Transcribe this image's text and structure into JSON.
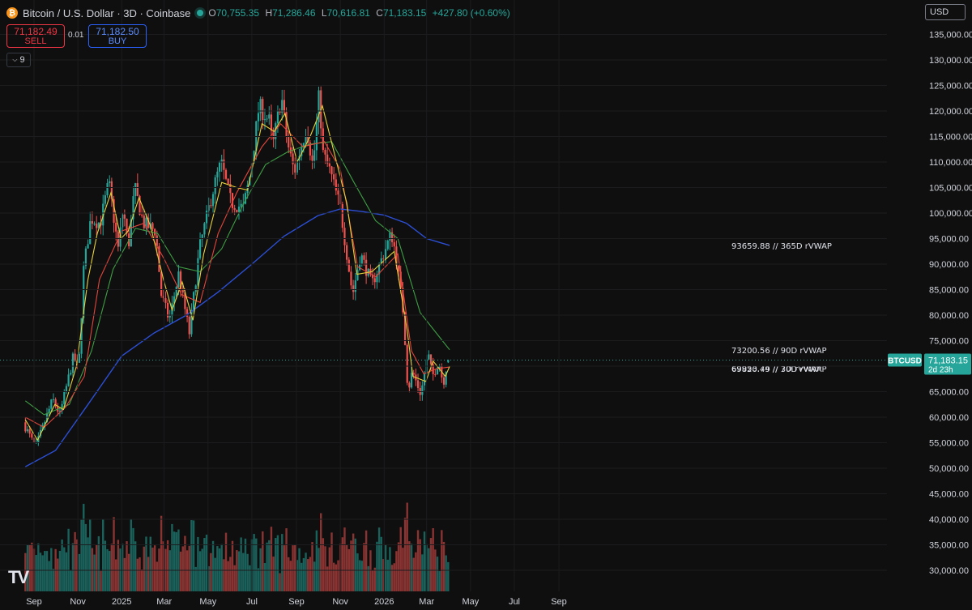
{
  "header": {
    "title": "Bitcoin / U.S. Dollar · 3D · Coinbase",
    "coin_glyph": "₿",
    "open_label": "O",
    "open": "70,755.35",
    "high_label": "H",
    "high": "71,286.46",
    "low_label": "L",
    "low": "70,616.81",
    "close_label": "C",
    "close": "71,183.15",
    "change": "+427.80 (+0.60%)"
  },
  "trade": {
    "sell_price": "71,182.49",
    "sell_label": "SELL",
    "spread": "0.01",
    "buy_price": "71,182.50",
    "buy_label": "BUY"
  },
  "indicator_count": "9",
  "currency": "USD",
  "logo": "TV",
  "colors": {
    "up": "#26a69a",
    "down": "#ef5350",
    "vwap365": "#2c4fd6",
    "vwap90": "#3f9e45",
    "vwap30": "#e3463c",
    "vwap7": "#e6d23a",
    "background": "#0f0f0f"
  },
  "chart_data": {
    "type": "candlestick",
    "title": "Bitcoin / U.S. Dollar · 3D · Coinbase",
    "y_axis": {
      "ticks": [
        "30,000.00",
        "35,000.00",
        "40,000.00",
        "45,000.00",
        "50,000.00",
        "55,000.00",
        "60,000.00",
        "65,000.00",
        "70,000.00",
        "75,000.00",
        "80,000.00",
        "85,000.00",
        "90,000.00",
        "95,000.00",
        "100,000.00",
        "105,000.00",
        "110,000.00",
        "115,000.00",
        "120,000.00",
        "125,000.00",
        "130,000.00",
        "135,000.00"
      ],
      "range": [
        27000,
        137000
      ]
    },
    "x_axis": {
      "ticks": [
        "Sep",
        "Nov",
        "2025",
        "Mar",
        "May",
        "Jul",
        "Sep",
        "Nov",
        "2026",
        "Mar",
        "May",
        "Jul",
        "Sep"
      ],
      "start": "2024-08-20"
    },
    "price_path": [
      [
        "2024-08-20",
        59000
      ],
      [
        "2024-09-06",
        54000
      ],
      [
        "2024-09-30",
        63500
      ],
      [
        "2024-10-10",
        60500
      ],
      [
        "2024-10-29",
        72000
      ],
      [
        "2024-11-05",
        69000
      ],
      [
        "2024-11-12",
        89000
      ],
      [
        "2024-11-22",
        99000
      ],
      [
        "2024-12-05",
        98000
      ],
      [
        "2024-12-17",
        106000
      ],
      [
        "2024-12-30",
        93000
      ],
      [
        "2025-01-06",
        101000
      ],
      [
        "2025-01-13",
        93000
      ],
      [
        "2025-01-22",
        105000
      ],
      [
        "2025-02-03",
        98000
      ],
      [
        "2025-02-20",
        96500
      ],
      [
        "2025-02-28",
        84000
      ],
      [
        "2025-03-11",
        79000
      ],
      [
        "2025-03-24",
        88000
      ],
      [
        "2025-04-08",
        76500
      ],
      [
        "2025-04-22",
        93000
      ],
      [
        "2025-05-10",
        104000
      ],
      [
        "2025-05-22",
        110000
      ],
      [
        "2025-06-05",
        102000
      ],
      [
        "2025-06-22",
        101000
      ],
      [
        "2025-07-01",
        107000
      ],
      [
        "2025-07-14",
        121000
      ],
      [
        "2025-07-28",
        118000
      ],
      [
        "2025-08-02",
        113000
      ],
      [
        "2025-08-14",
        123000
      ],
      [
        "2025-08-22",
        114000
      ],
      [
        "2025-09-01",
        108000
      ],
      [
        "2025-09-18",
        117000
      ],
      [
        "2025-09-27",
        109000
      ],
      [
        "2025-10-06",
        124000
      ],
      [
        "2025-10-10",
        112000
      ],
      [
        "2025-10-21",
        108000
      ],
      [
        "2025-11-04",
        101000
      ],
      [
        "2025-11-21",
        84000
      ],
      [
        "2025-12-02",
        92000
      ],
      [
        "2025-12-18",
        86000
      ],
      [
        "2026-01-14",
        96000
      ],
      [
        "2026-01-20",
        92000
      ],
      [
        "2026-01-31",
        80000
      ],
      [
        "2026-02-06",
        65000
      ],
      [
        "2026-02-12",
        69000
      ],
      [
        "2026-02-24",
        64500
      ],
      [
        "2026-03-06",
        72500
      ],
      [
        "2026-03-12",
        68000
      ],
      [
        "2026-03-21",
        71000
      ],
      [
        "2026-03-27",
        66500
      ],
      [
        "2026-04-02",
        71183
      ]
    ],
    "last_candle": {
      "open": 70755.35,
      "high": 71286.46,
      "low": 70616.81,
      "close": 71183.15
    },
    "current_price": {
      "symbol": "BTCUSD",
      "value": "71,183.15",
      "countdown": "2d 23h",
      "y": 71183.15
    },
    "series": [
      {
        "name": "365D rVWAP",
        "end_label": "93659.88 // 365D rVWAP",
        "end_value": 93659.88,
        "color": "#2c4fd6",
        "points": [
          [
            "2024-08-20",
            50300
          ],
          [
            "2024-10-01",
            53500
          ],
          [
            "2024-11-15",
            62500
          ],
          [
            "2025-01-01",
            72000
          ],
          [
            "2025-02-15",
            76500
          ],
          [
            "2025-04-01",
            80000
          ],
          [
            "2025-05-15",
            84500
          ],
          [
            "2025-07-01",
            90000
          ],
          [
            "2025-08-15",
            95500
          ],
          [
            "2025-10-01",
            99500
          ],
          [
            "2025-11-01",
            100800
          ],
          [
            "2025-12-01",
            100300
          ],
          [
            "2026-01-01",
            99600
          ],
          [
            "2026-02-01",
            98000
          ],
          [
            "2026-03-01",
            95000
          ],
          [
            "2026-04-02",
            93660
          ]
        ]
      },
      {
        "name": "90D rVWAP",
        "end_label": "73200.56 // 90D rVWAP",
        "end_value": 73200.56,
        "color": "#3f9e45",
        "points": [
          [
            "2024-08-20",
            63200
          ],
          [
            "2024-09-15",
            60500
          ],
          [
            "2024-10-20",
            62500
          ],
          [
            "2024-11-20",
            73000
          ],
          [
            "2024-12-20",
            89000
          ],
          [
            "2025-01-20",
            97000
          ],
          [
            "2025-02-20",
            96000
          ],
          [
            "2025-03-20",
            89500
          ],
          [
            "2025-04-20",
            88500
          ],
          [
            "2025-05-20",
            93000
          ],
          [
            "2025-06-20",
            102000
          ],
          [
            "2025-07-20",
            109500
          ],
          [
            "2025-08-20",
            112000
          ],
          [
            "2025-09-20",
            113500
          ],
          [
            "2025-10-20",
            114000
          ],
          [
            "2025-11-20",
            106000
          ],
          [
            "2025-12-20",
            98500
          ],
          [
            "2026-01-20",
            95000
          ],
          [
            "2026-02-20",
            80500
          ],
          [
            "2026-03-20",
            75500
          ],
          [
            "2026-04-02",
            73200
          ]
        ]
      },
      {
        "name": "30D rVWAP",
        "end_label": "69820.49 // 30D rVWAP",
        "end_value": 69820.49,
        "color": "#e3463c",
        "points": [
          [
            "2024-08-20",
            60000
          ],
          [
            "2024-09-15",
            58000
          ],
          [
            "2024-10-15",
            62000
          ],
          [
            "2024-11-10",
            68000
          ],
          [
            "2024-12-01",
            87000
          ],
          [
            "2025-01-01",
            96500
          ],
          [
            "2025-02-01",
            98000
          ],
          [
            "2025-03-01",
            91000
          ],
          [
            "2025-03-25",
            84000
          ],
          [
            "2025-04-20",
            82500
          ],
          [
            "2025-05-15",
            96000
          ],
          [
            "2025-06-10",
            104000
          ],
          [
            "2025-07-15",
            113000
          ],
          [
            "2025-08-10",
            117500
          ],
          [
            "2025-09-10",
            113000
          ],
          [
            "2025-10-10",
            114000
          ],
          [
            "2025-11-01",
            108500
          ],
          [
            "2025-11-25",
            89500
          ],
          [
            "2025-12-20",
            87500
          ],
          [
            "2026-01-20",
            92000
          ],
          [
            "2026-02-08",
            73000
          ],
          [
            "2026-02-25",
            68500
          ],
          [
            "2026-03-15",
            69500
          ],
          [
            "2026-04-02",
            69820
          ]
        ]
      },
      {
        "name": "7D rVWAP",
        "end_label": "69953.74 // 7D rVWAP",
        "end_value": 69953.74,
        "color": "#e6d23a",
        "points": [
          [
            "2024-08-20",
            59500
          ],
          [
            "2024-09-06",
            55500
          ],
          [
            "2024-09-30",
            62500
          ],
          [
            "2024-10-12",
            61500
          ],
          [
            "2024-10-30",
            70000
          ],
          [
            "2024-11-15",
            87000
          ],
          [
            "2024-11-28",
            96000
          ],
          [
            "2024-12-17",
            104000
          ],
          [
            "2024-12-31",
            95000
          ],
          [
            "2025-01-10",
            96500
          ],
          [
            "2025-01-25",
            103000
          ],
          [
            "2025-02-10",
            97500
          ],
          [
            "2025-02-28",
            87000
          ],
          [
            "2025-03-12",
            81000
          ],
          [
            "2025-03-26",
            86500
          ],
          [
            "2025-04-10",
            79000
          ],
          [
            "2025-04-25",
            92000
          ],
          [
            "2025-05-20",
            106000
          ],
          [
            "2025-06-10",
            105000
          ],
          [
            "2025-06-25",
            104500
          ],
          [
            "2025-07-15",
            117500
          ],
          [
            "2025-08-01",
            116000
          ],
          [
            "2025-08-16",
            119500
          ],
          [
            "2025-09-02",
            110000
          ],
          [
            "2025-09-20",
            115000
          ],
          [
            "2025-10-07",
            121000
          ],
          [
            "2025-10-25",
            111000
          ],
          [
            "2025-11-10",
            102000
          ],
          [
            "2025-11-24",
            88000
          ],
          [
            "2025-12-15",
            88500
          ],
          [
            "2026-01-15",
            92500
          ],
          [
            "2026-02-02",
            77000
          ],
          [
            "2026-02-10",
            68000
          ],
          [
            "2026-02-28",
            67000
          ],
          [
            "2026-03-10",
            71000
          ],
          [
            "2026-03-27",
            68000
          ],
          [
            "2026-04-02",
            69950
          ]
        ]
      }
    ],
    "volume": {
      "scale_max": 100,
      "description_values": "relative bar heights in percent of max"
    }
  }
}
